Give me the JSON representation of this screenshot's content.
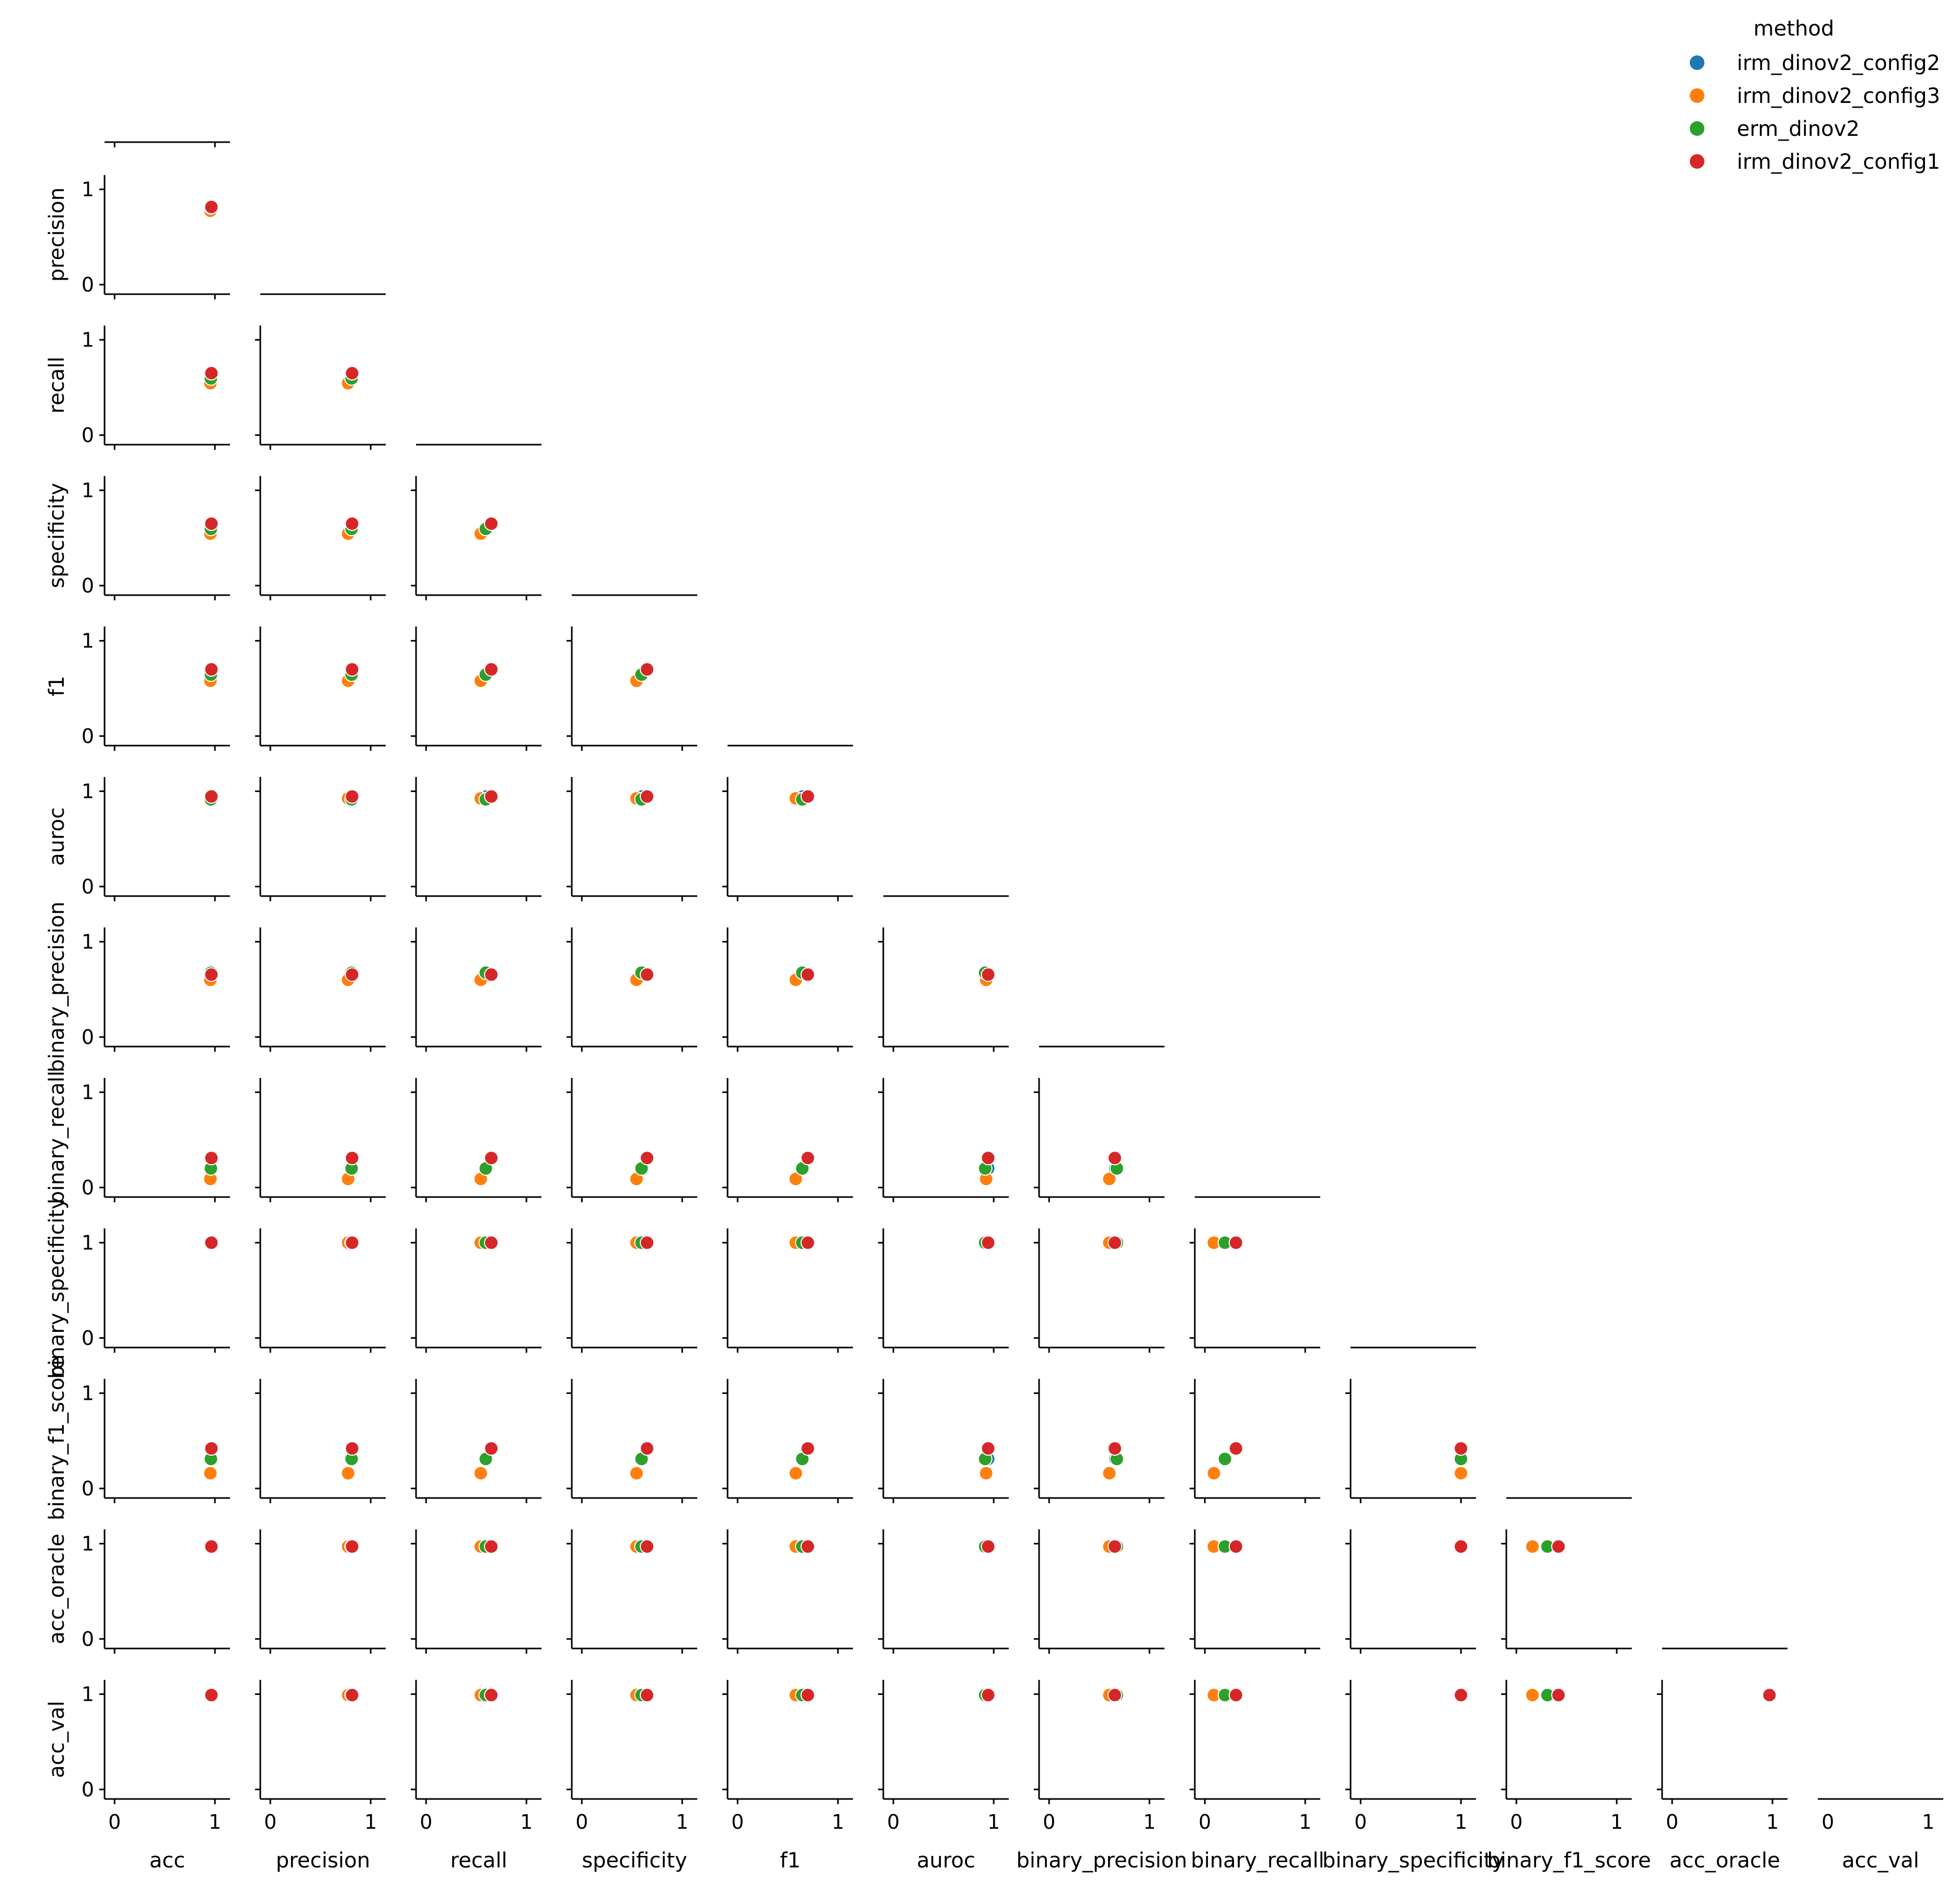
{
  "chart_data": {
    "type": "scatter",
    "variables": [
      "acc",
      "precision",
      "recall",
      "specificity",
      "f1",
      "auroc",
      "binary_precision",
      "binary_recall",
      "binary_specificity",
      "binary_f1_score",
      "acc_oracle",
      "acc_val"
    ],
    "ticks": [
      0,
      1
    ],
    "lim": [
      -0.1,
      1.15
    ],
    "grid": false,
    "legend": {
      "title": "method",
      "position": "top-right"
    },
    "series": [
      {
        "name": "irm_dinov2_config2",
        "color": "#1f77b4",
        "values": [
          0.965,
          0.805,
          0.6,
          0.6,
          0.65,
          0.945,
          0.66,
          0.2,
          1.0,
          0.31,
          0.97,
          0.99
        ]
      },
      {
        "name": "irm_dinov2_config3",
        "color": "#ff7f0e",
        "values": [
          0.955,
          0.775,
          0.545,
          0.545,
          0.58,
          0.925,
          0.6,
          0.09,
          1.0,
          0.16,
          0.97,
          0.99
        ]
      },
      {
        "name": "erm_dinov2",
        "color": "#2ca02c",
        "values": [
          0.96,
          0.81,
          0.595,
          0.595,
          0.645,
          0.915,
          0.675,
          0.2,
          1.0,
          0.31,
          0.97,
          0.99
        ]
      },
      {
        "name": "irm_dinov2_config1",
        "color": "#d62728",
        "values": [
          0.965,
          0.815,
          0.65,
          0.65,
          0.7,
          0.945,
          0.655,
          0.31,
          1.0,
          0.42,
          0.97,
          0.99
        ]
      }
    ]
  }
}
